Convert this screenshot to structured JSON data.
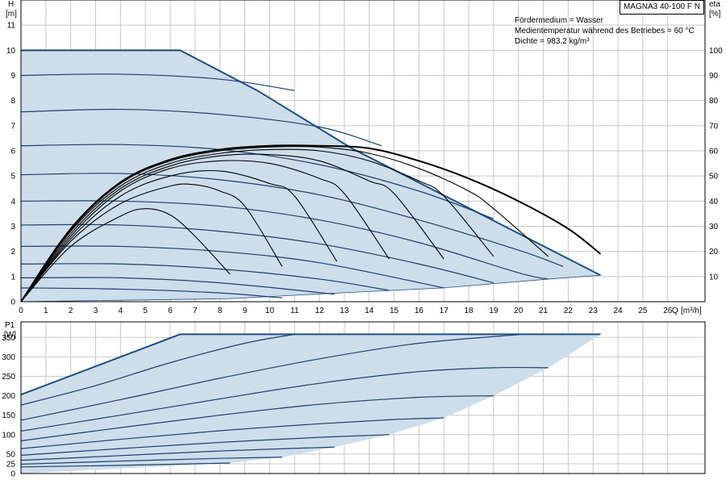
{
  "model": "MAGNA3 40-100 F N",
  "medium": "Fördermedium = Wasser",
  "temperature": "Medientemperatur während des Betriebes = 60 °C",
  "density": "Dichte = 983.2 kg/m³",
  "chart_data": [
    {
      "type": "line",
      "panel": "head",
      "ylabel": "H",
      "yunit": "[m]",
      "y2label": "eta",
      "y2unit": "[%]",
      "xlabel": "Q",
      "xunit": "[m³/h]",
      "xlim": [
        0,
        27.5
      ],
      "ylim": [
        0,
        12
      ],
      "y2lim": [
        0,
        120
      ],
      "xticks": [
        0,
        1,
        2,
        3,
        4,
        5,
        6,
        7,
        8,
        9,
        10,
        11,
        12,
        13,
        14,
        15,
        16,
        17,
        18,
        19,
        20,
        21,
        22,
        23,
        24,
        25,
        26
      ],
      "yticks": [
        0,
        1,
        2,
        3,
        4,
        5,
        6,
        7,
        8,
        9,
        10,
        11
      ],
      "y2ticks": [
        10,
        20,
        30,
        40,
        50,
        60,
        70,
        80,
        90,
        100
      ],
      "grid": true,
      "envelope": [
        [
          0,
          10
        ],
        [
          6.4,
          10
        ],
        [
          9.5,
          8.4
        ],
        [
          13.3,
          6.1
        ],
        [
          23.3,
          1.05
        ],
        [
          21.2,
          0.9
        ],
        [
          17,
          0.55
        ],
        [
          12.8,
          0.35
        ],
        [
          8.4,
          0.12
        ],
        [
          0,
          0
        ]
      ],
      "head_series": [
        {
          "points": [
            [
              0,
              10
            ],
            [
              6.4,
              10
            ]
          ]
        },
        {
          "points": [
            [
              0,
              9.0
            ],
            [
              4,
              9.05
            ],
            [
              8,
              8.85
            ],
            [
              11,
              8.4
            ]
          ]
        },
        {
          "points": [
            [
              0,
              7.55
            ],
            [
              4,
              7.65
            ],
            [
              8,
              7.45
            ],
            [
              12,
              6.95
            ],
            [
              14.5,
              6.2
            ]
          ]
        },
        {
          "points": [
            [
              0,
              6.2
            ],
            [
              4,
              6.25
            ],
            [
              8,
              6.05
            ],
            [
              12,
              5.45
            ],
            [
              16,
              4.4
            ],
            [
              19,
              3.3
            ]
          ]
        },
        {
          "points": [
            [
              0,
              5.05
            ],
            [
              4,
              5.1
            ],
            [
              8,
              4.85
            ],
            [
              12,
              4.25
            ],
            [
              16,
              3.25
            ],
            [
              20,
              2.05
            ],
            [
              21.8,
              1.4
            ]
          ]
        },
        {
          "points": [
            [
              0,
              4.0
            ],
            [
              4,
              4.0
            ],
            [
              8,
              3.8
            ],
            [
              12,
              3.25
            ],
            [
              16,
              2.35
            ],
            [
              20,
              1.15
            ],
            [
              21.2,
              0.9
            ]
          ]
        },
        {
          "points": [
            [
              0,
              3.05
            ],
            [
              4,
              3.05
            ],
            [
              8,
              2.8
            ],
            [
              12,
              2.3
            ],
            [
              16,
              1.5
            ],
            [
              19,
              0.75
            ]
          ]
        },
        {
          "points": [
            [
              0,
              2.2
            ],
            [
              4,
              2.2
            ],
            [
              8,
              2.0
            ],
            [
              12,
              1.55
            ],
            [
              17,
              0.55
            ]
          ]
        },
        {
          "points": [
            [
              0,
              1.5
            ],
            [
              4,
              1.5
            ],
            [
              8,
              1.3
            ],
            [
              12,
              0.9
            ],
            [
              14.8,
              0.45
            ]
          ]
        },
        {
          "points": [
            [
              0,
              0.95
            ],
            [
              4,
              0.95
            ],
            [
              8,
              0.75
            ],
            [
              12.6,
              0.3
            ]
          ]
        },
        {
          "points": [
            [
              0,
              0.55
            ],
            [
              4,
              0.5
            ],
            [
              8,
              0.35
            ],
            [
              10.5,
              0.15
            ]
          ]
        }
      ],
      "efficiency_series": [
        {
          "points": [
            [
              0,
              0
            ],
            [
              2,
              22
            ],
            [
              4,
              34
            ],
            [
              5,
              37
            ],
            [
              6,
              34.5
            ],
            [
              7,
              26
            ],
            [
              8.4,
              11
            ]
          ]
        },
        {
          "points": [
            [
              0,
              0
            ],
            [
              2,
              24
            ],
            [
              4,
              39
            ],
            [
              6,
              46
            ],
            [
              7,
              46.5
            ],
            [
              8,
              44
            ],
            [
              9,
              38
            ],
            [
              10.5,
              14
            ]
          ]
        },
        {
          "points": [
            [
              0,
              0
            ],
            [
              2,
              25
            ],
            [
              4,
              42
            ],
            [
              6,
              50
            ],
            [
              8,
              52
            ],
            [
              10,
              47
            ],
            [
              11,
              42
            ],
            [
              12.7,
              16
            ]
          ]
        },
        {
          "points": [
            [
              0,
              0
            ],
            [
              2,
              26
            ],
            [
              4,
              44
            ],
            [
              6,
              53
            ],
            [
              8,
              56
            ],
            [
              10,
              55
            ],
            [
              12,
              49
            ],
            [
              13,
              43
            ],
            [
              14.8,
              17
            ]
          ]
        },
        {
          "points": [
            [
              0,
              0
            ],
            [
              2,
              27
            ],
            [
              4,
              45
            ],
            [
              6,
              54
            ],
            [
              8,
              58
            ],
            [
              10,
              58.5
            ],
            [
              12,
              56
            ],
            [
              14,
              48
            ],
            [
              15,
              43
            ],
            [
              17,
              17
            ]
          ]
        },
        {
          "points": [
            [
              0,
              0
            ],
            [
              2,
              28
            ],
            [
              4,
              46
            ],
            [
              6,
              55
            ],
            [
              8,
              59
            ],
            [
              10,
              60.5
            ],
            [
              12,
              60
            ],
            [
              14,
              56
            ],
            [
              16,
              48
            ],
            [
              17,
              42
            ],
            [
              19,
              18
            ]
          ]
        },
        {
          "points": [
            [
              0,
              0
            ],
            [
              2,
              28.5
            ],
            [
              4,
              47
            ],
            [
              6,
              56
            ],
            [
              8,
              60
            ],
            [
              10,
              61.5
            ],
            [
              12,
              61.5
            ],
            [
              14,
              59
            ],
            [
              16,
              53
            ],
            [
              18,
              44
            ],
            [
              19,
              37
            ],
            [
              21.2,
              18
            ]
          ]
        },
        {
          "points": [
            [
              0,
              0
            ],
            [
              2,
              29
            ],
            [
              4,
              47.5
            ],
            [
              6,
              56.5
            ],
            [
              8,
              60.5
            ],
            [
              10,
              62
            ],
            [
              12,
              62
            ],
            [
              14,
              61
            ],
            [
              16,
              56
            ],
            [
              18,
              49
            ],
            [
              20,
              40
            ],
            [
              22,
              29
            ],
            [
              23.3,
              19
            ]
          ],
          "max": true
        }
      ]
    },
    {
      "type": "line",
      "panel": "power",
      "ylabel": "P1",
      "yunit": "[W]",
      "xlim": [
        0,
        27.5
      ],
      "ylim": [
        0,
        390
      ],
      "yticks": [
        0,
        25,
        50,
        100,
        150,
        200,
        250,
        300,
        350
      ],
      "grid": true,
      "envelope": [
        [
          0,
          203
        ],
        [
          6.4,
          358
        ],
        [
          23.3,
          358
        ],
        [
          21.2,
          272
        ],
        [
          19,
          200
        ],
        [
          17,
          143
        ],
        [
          14.8,
          100
        ],
        [
          12.6,
          68
        ],
        [
          10.5,
          42
        ],
        [
          8.4,
          27
        ],
        [
          0,
          0
        ]
      ],
      "power_series": [
        {
          "points": [
            [
              0,
              203
            ],
            [
              6.4,
              358
            ],
            [
              23.3,
              358
            ]
          ]
        },
        {
          "points": [
            [
              0,
              176
            ],
            [
              3,
              226
            ],
            [
              6,
              285
            ],
            [
              9,
              335
            ],
            [
              11,
              358
            ]
          ]
        },
        {
          "points": [
            [
              0,
              137
            ],
            [
              4,
              190
            ],
            [
              8,
              245
            ],
            [
              12,
              295
            ],
            [
              16,
              335
            ],
            [
              20,
              357
            ]
          ]
        },
        {
          "points": [
            [
              0,
              109
            ],
            [
              4,
              150
            ],
            [
              8,
              192
            ],
            [
              12,
              232
            ],
            [
              16,
              262
            ],
            [
              19,
              272
            ],
            [
              21.2,
              272
            ]
          ]
        },
        {
          "points": [
            [
              0,
              84
            ],
            [
              4,
              118
            ],
            [
              8,
              150
            ],
            [
              12,
              178
            ],
            [
              16,
              196
            ],
            [
              19,
              200
            ]
          ]
        },
        {
          "points": [
            [
              0,
              64
            ],
            [
              4,
              88
            ],
            [
              8,
              110
            ],
            [
              12,
              128
            ],
            [
              15,
              139
            ],
            [
              17,
              143
            ]
          ]
        },
        {
          "points": [
            [
              0,
              47
            ],
            [
              4,
              64
            ],
            [
              8,
              80
            ],
            [
              12,
              93
            ],
            [
              14.8,
              100
            ]
          ]
        },
        {
          "points": [
            [
              0,
              34
            ],
            [
              4,
              46
            ],
            [
              8,
              58
            ],
            [
              12.6,
              68
            ]
          ]
        },
        {
          "points": [
            [
              0,
              24
            ],
            [
              4,
              32
            ],
            [
              8,
              39
            ],
            [
              10.5,
              42
            ]
          ]
        },
        {
          "points": [
            [
              0,
              17
            ],
            [
              4,
              21
            ],
            [
              8.4,
              27
            ]
          ]
        }
      ]
    }
  ]
}
